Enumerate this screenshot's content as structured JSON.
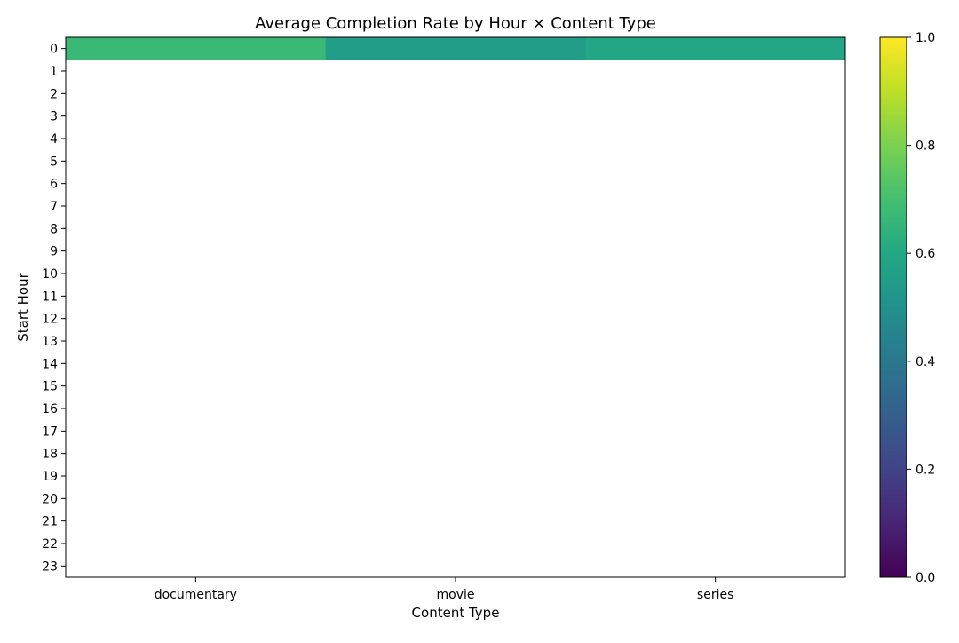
{
  "chart_data": {
    "type": "heatmap",
    "title": "Average Completion Rate by Hour × Content Type",
    "xlabel": "Content Type",
    "ylabel": "Start Hour",
    "x_categories": [
      "documentary",
      "movie",
      "series"
    ],
    "y_categories": [
      "0",
      "1",
      "2",
      "3",
      "4",
      "5",
      "6",
      "7",
      "8",
      "9",
      "10",
      "11",
      "12",
      "13",
      "14",
      "15",
      "16",
      "17",
      "18",
      "19",
      "20",
      "21",
      "22",
      "23"
    ],
    "values": [
      [
        0.67,
        0.55,
        0.59
      ],
      [
        null,
        null,
        null
      ],
      [
        null,
        null,
        null
      ],
      [
        null,
        null,
        null
      ],
      [
        null,
        null,
        null
      ],
      [
        null,
        null,
        null
      ],
      [
        null,
        null,
        null
      ],
      [
        null,
        null,
        null
      ],
      [
        null,
        null,
        null
      ],
      [
        null,
        null,
        null
      ],
      [
        null,
        null,
        null
      ],
      [
        null,
        null,
        null
      ],
      [
        null,
        null,
        null
      ],
      [
        null,
        null,
        null
      ],
      [
        null,
        null,
        null
      ],
      [
        null,
        null,
        null
      ],
      [
        null,
        null,
        null
      ],
      [
        null,
        null,
        null
      ],
      [
        null,
        null,
        null
      ],
      [
        null,
        null,
        null
      ],
      [
        null,
        null,
        null
      ],
      [
        null,
        null,
        null
      ],
      [
        null,
        null,
        null
      ],
      [
        null,
        null,
        null
      ]
    ],
    "colormap": "viridis",
    "colorbar": {
      "range": [
        0.0,
        1.0
      ],
      "ticks": [
        "0.0",
        "0.2",
        "0.4",
        "0.6",
        "0.8",
        "1.0"
      ]
    },
    "grid": false
  }
}
